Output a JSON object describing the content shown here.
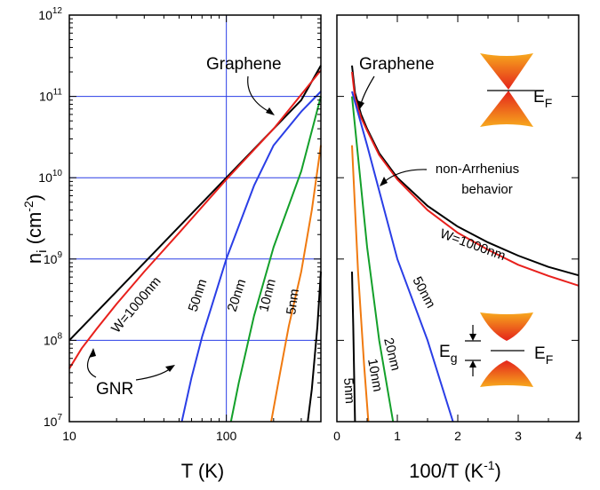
{
  "colors": {
    "black": "#000000",
    "red": "#e8201c",
    "blue": "#2a3ee6",
    "green": "#13a02a",
    "orange": "#f07a10",
    "grid": "#2a3ee6",
    "cone_outer": "#f7a91d",
    "cone_inner": "#e4231b"
  },
  "chart_data": [
    {
      "type": "line",
      "xlabel": "T (K)",
      "ylabel": "n_i (cm^-2)",
      "xscale": "log",
      "yscale": "log",
      "xlim": [
        10,
        400
      ],
      "ylim": [
        10000000,
        1000000000000
      ],
      "grid": true,
      "x_ticks": [
        10,
        100
      ],
      "x_tick_labels": [
        "10",
        "100"
      ],
      "y_ticks": [
        10000000,
        100000000,
        1000000000,
        10000000000,
        100000000000,
        1000000000000
      ],
      "y_tick_bases": [
        "10",
        "10",
        "10",
        "10",
        "10",
        "10"
      ],
      "y_tick_exponents": [
        "7",
        "8",
        "9",
        "10",
        "11",
        "12"
      ],
      "series": [
        {
          "name": "Graphene",
          "color": "#000000",
          "x": [
            10,
            20,
            50,
            100,
            200,
            300,
            400
          ],
          "y": [
            100000000,
            400000000,
            2500000000,
            10000000000,
            40000000000,
            90000000000,
            240000000000
          ]
        },
        {
          "name": "W=1000nm",
          "color": "#e8201c",
          "x": [
            10,
            12,
            15,
            20,
            30,
            50,
            100,
            200,
            400
          ],
          "y": [
            45000000,
            80000000,
            140000000,
            280000000,
            700000000,
            2100000000,
            9500000000,
            40000000000,
            210000000000
          ]
        },
        {
          "name": "50nm",
          "color": "#2a3ee6",
          "x": [
            52,
            60,
            70,
            80,
            100,
            150,
            200,
            300,
            400
          ],
          "y": [
            10000000,
            35000000,
            110000000,
            250000000,
            1000000000,
            8000000000,
            25000000000,
            65000000000,
            115000000000
          ]
        },
        {
          "name": "20nm",
          "color": "#13a02a",
          "x": [
            107,
            120,
            150,
            200,
            300,
            400
          ],
          "y": [
            10000000,
            30000000,
            200000000,
            1400000000,
            12000000000,
            100000000000
          ]
        },
        {
          "name": "10nm",
          "color": "#f07a10",
          "x": [
            193,
            220,
            250,
            300,
            350,
            400
          ],
          "y": [
            10000000,
            40000000,
            150000000,
            700000000,
            4000000000,
            25000000000
          ]
        },
        {
          "name": "5nm",
          "color": "#000000",
          "x": [
            330,
            350,
            380,
            400
          ],
          "y": [
            10000000,
            25000000,
            150000000,
            700000000
          ]
        }
      ],
      "annotations": [
        "Graphene",
        "W=1000nm",
        "50nm",
        "20nm",
        "10nm",
        "5nm",
        "GNR"
      ]
    },
    {
      "type": "line",
      "xlabel": "100/T (K^-1)",
      "xscale": "linear",
      "yscale": "log",
      "xlim": [
        0,
        4
      ],
      "ylim": [
        10000000,
        1000000000000
      ],
      "grid": false,
      "x_ticks": [
        0,
        1,
        2,
        3,
        4
      ],
      "x_tick_labels": [
        "0",
        "1",
        "2",
        "3",
        "4"
      ],
      "series": [
        {
          "name": "Graphene",
          "color": "#000000",
          "x": [
            0.25,
            0.3,
            0.4,
            0.5,
            0.7,
            1.0,
            1.5,
            2.0,
            2.5,
            3.0,
            3.5,
            4.0
          ],
          "y": [
            240000000000,
            110000000000,
            60000000000,
            40000000000,
            20000000000,
            10000000000,
            4500000000,
            2500000000,
            1600000000,
            1100000000,
            800000000,
            630000000
          ]
        },
        {
          "name": "W=1000nm",
          "color": "#e8201c",
          "x": [
            0.25,
            0.3,
            0.4,
            0.5,
            0.7,
            1.0,
            1.5,
            2.0,
            2.5,
            3.0,
            3.5,
            4.0
          ],
          "y": [
            200000000000,
            95000000000,
            55000000000,
            38000000000,
            19000000000,
            9500000000,
            4000000000,
            2100000000,
            1300000000,
            850000000,
            620000000,
            470000000
          ]
        },
        {
          "name": "50nm",
          "color": "#2a3ee6",
          "x": [
            0.25,
            0.5,
            1.0,
            1.5,
            1.92
          ],
          "y": [
            115000000000,
            25000000000,
            1000000000,
            100000000,
            10000000
          ]
        },
        {
          "name": "20nm",
          "color": "#13a02a",
          "x": [
            0.25,
            0.5,
            0.7,
            0.93
          ],
          "y": [
            100000000000,
            1400000000,
            100000000,
            10000000
          ]
        },
        {
          "name": "10nm",
          "color": "#f07a10",
          "x": [
            0.25,
            0.35,
            0.45,
            0.52
          ],
          "y": [
            25000000000,
            700000000,
            50000000,
            10000000
          ]
        },
        {
          "name": "5nm",
          "color": "#000000",
          "x": [
            0.25,
            0.27,
            0.29,
            0.3
          ],
          "y": [
            700000000,
            150000000,
            25000000,
            10000000
          ]
        }
      ],
      "annotations": [
        "Graphene",
        "non-Arrhenius behavior",
        "W=1000nm",
        "50nm",
        "20nm",
        "10nm",
        "5nm",
        "E_F",
        "E_g"
      ]
    }
  ],
  "labels": {
    "left_x_title": "T (K)",
    "y_title_n": "n",
    "y_title_i": "i",
    "y_title_unit": " (cm",
    "y_title_exp": "-2",
    "y_title_close": ")",
    "right_x_title_main": "100/T (K",
    "right_x_title_exp": "-1",
    "right_x_title_close": ")",
    "graphene_left": "Graphene",
    "gnr": "GNR",
    "w1000_left": "W=1000nm",
    "w50_left": "50nm",
    "w20_left": "20nm",
    "w10_left": "10nm",
    "w5_left": "5nm",
    "graphene_right": "Graphene",
    "non_arrhenius_1": "non-Arrhenius",
    "non_arrhenius_2": "behavior",
    "w1000_right": "W=1000nm",
    "w50_right": "50nm",
    "w20_right": "20nm",
    "w10_right": "10nm",
    "w5_right": "5nm",
    "ef_top_E": "E",
    "ef_top_F": "F",
    "ef_bot_E": "E",
    "ef_bot_F": "F",
    "eg_E": "E",
    "eg_g": "g"
  }
}
